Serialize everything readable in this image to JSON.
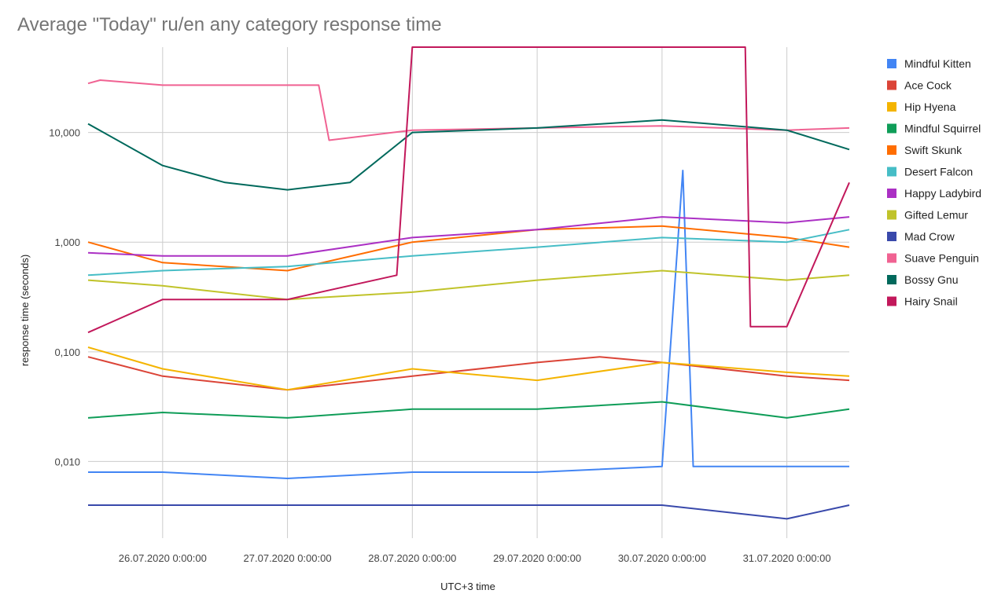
{
  "chart_data": {
    "type": "line",
    "title": "Average \"Today\" ru/en any category response time",
    "xlabel": "UTC+3 time",
    "ylabel": "response time (seconds)",
    "y_scale": "log",
    "ylim": [
      0.002,
      60
    ],
    "xlim": [
      "2020-07-25T09:40:00",
      "2020-07-31T12:00:00"
    ],
    "y_ticks": [
      {
        "value": 0.01,
        "label": "0,010"
      },
      {
        "value": 0.1,
        "label": "0,100"
      },
      {
        "value": 1,
        "label": "1,000"
      },
      {
        "value": 10,
        "label": "10,000"
      }
    ],
    "x_ticks": [
      {
        "value": "2020-07-26T00:00:00",
        "label": "26.07.2020 0:00:00"
      },
      {
        "value": "2020-07-27T00:00:00",
        "label": "27.07.2020 0:00:00"
      },
      {
        "value": "2020-07-28T00:00:00",
        "label": "28.07.2020 0:00:00"
      },
      {
        "value": "2020-07-29T00:00:00",
        "label": "29.07.2020 0:00:00"
      },
      {
        "value": "2020-07-30T00:00:00",
        "label": "30.07.2020 0:00:00"
      },
      {
        "value": "2020-07-31T00:00:00",
        "label": "31.07.2020 0:00:00"
      }
    ],
    "grid": true,
    "legend_position": "right",
    "series": [
      {
        "name": "Mindful Kitten",
        "color": "#4285f4",
        "x": [
          "2020-07-25T09:40",
          "2020-07-26T00:00",
          "2020-07-27T00:00",
          "2020-07-28T00:00",
          "2020-07-29T00:00",
          "2020-07-30T00:00",
          "2020-07-30T04:00",
          "2020-07-30T06:00",
          "2020-07-31T00:00",
          "2020-07-31T12:00"
        ],
        "y": [
          0.008,
          0.008,
          0.007,
          0.008,
          0.008,
          0.009,
          4.5,
          0.009,
          0.009,
          0.009
        ]
      },
      {
        "name": "Ace Cock",
        "color": "#db4437",
        "x": [
          "2020-07-25T09:40",
          "2020-07-26T00:00",
          "2020-07-27T00:00",
          "2020-07-28T00:00",
          "2020-07-29T00:00",
          "2020-07-29T12:00",
          "2020-07-30T00:00",
          "2020-07-31T00:00",
          "2020-07-31T12:00"
        ],
        "y": [
          0.09,
          0.06,
          0.045,
          0.06,
          0.08,
          0.09,
          0.08,
          0.06,
          0.055
        ]
      },
      {
        "name": "Hip Hyena",
        "color": "#f4b400",
        "x": [
          "2020-07-25T09:40",
          "2020-07-26T00:00",
          "2020-07-27T00:00",
          "2020-07-28T00:00",
          "2020-07-29T00:00",
          "2020-07-30T00:00",
          "2020-07-31T00:00",
          "2020-07-31T12:00"
        ],
        "y": [
          0.11,
          0.07,
          0.045,
          0.07,
          0.055,
          0.08,
          0.065,
          0.06
        ]
      },
      {
        "name": "Mindful Squirrel",
        "color": "#0f9d58",
        "x": [
          "2020-07-25T09:40",
          "2020-07-26T00:00",
          "2020-07-27T00:00",
          "2020-07-28T00:00",
          "2020-07-29T00:00",
          "2020-07-30T00:00",
          "2020-07-31T00:00",
          "2020-07-31T12:00"
        ],
        "y": [
          0.025,
          0.028,
          0.025,
          0.03,
          0.03,
          0.035,
          0.025,
          0.03
        ]
      },
      {
        "name": "Swift Skunk",
        "color": "#ff6d00",
        "x": [
          "2020-07-25T09:40",
          "2020-07-26T00:00",
          "2020-07-27T00:00",
          "2020-07-28T00:00",
          "2020-07-29T00:00",
          "2020-07-30T00:00",
          "2020-07-31T00:00",
          "2020-07-31T12:00"
        ],
        "y": [
          1.0,
          0.65,
          0.55,
          1.0,
          1.3,
          1.4,
          1.1,
          0.9
        ]
      },
      {
        "name": "Desert Falcon",
        "color": "#46bdc6",
        "x": [
          "2020-07-25T09:40",
          "2020-07-26T00:00",
          "2020-07-27T00:00",
          "2020-07-28T00:00",
          "2020-07-29T00:00",
          "2020-07-30T00:00",
          "2020-07-31T00:00",
          "2020-07-31T12:00"
        ],
        "y": [
          0.5,
          0.55,
          0.6,
          0.75,
          0.9,
          1.1,
          1.0,
          1.3
        ]
      },
      {
        "name": "Happy Ladybird",
        "color": "#ab30c4",
        "x": [
          "2020-07-25T09:40",
          "2020-07-26T00:00",
          "2020-07-27T00:00",
          "2020-07-28T00:00",
          "2020-07-29T00:00",
          "2020-07-30T00:00",
          "2020-07-31T00:00",
          "2020-07-31T12:00"
        ],
        "y": [
          0.8,
          0.75,
          0.75,
          1.1,
          1.3,
          1.7,
          1.5,
          1.7
        ]
      },
      {
        "name": "Gifted Lemur",
        "color": "#c0c32a",
        "x": [
          "2020-07-25T09:40",
          "2020-07-26T00:00",
          "2020-07-27T00:00",
          "2020-07-28T00:00",
          "2020-07-29T00:00",
          "2020-07-30T00:00",
          "2020-07-31T00:00",
          "2020-07-31T12:00"
        ],
        "y": [
          0.45,
          0.4,
          0.3,
          0.35,
          0.45,
          0.55,
          0.45,
          0.5
        ]
      },
      {
        "name": "Mad Crow",
        "color": "#3949ab",
        "x": [
          "2020-07-25T09:40",
          "2020-07-26T00:00",
          "2020-07-27T00:00",
          "2020-07-28T00:00",
          "2020-07-29T00:00",
          "2020-07-30T00:00",
          "2020-07-31T00:00",
          "2020-07-31T12:00"
        ],
        "y": [
          0.004,
          0.004,
          0.004,
          0.004,
          0.004,
          0.004,
          0.003,
          0.004
        ]
      },
      {
        "name": "Suave Penguin",
        "color": "#f06292",
        "x": [
          "2020-07-25T09:40",
          "2020-07-25T12:00",
          "2020-07-26T00:00",
          "2020-07-27T00:00",
          "2020-07-27T06:00",
          "2020-07-27T08:00",
          "2020-07-28T00:00",
          "2020-07-29T00:00",
          "2020-07-30T00:00",
          "2020-07-31T00:00",
          "2020-07-31T12:00"
        ],
        "y": [
          28,
          30,
          27,
          27,
          27,
          8.5,
          10.5,
          11,
          11.5,
          10.5,
          11
        ]
      },
      {
        "name": "Bossy Gnu",
        "color": "#00695c",
        "x": [
          "2020-07-25T09:40",
          "2020-07-26T00:00",
          "2020-07-26T12:00",
          "2020-07-27T00:00",
          "2020-07-27T12:00",
          "2020-07-28T00:00",
          "2020-07-29T00:00",
          "2020-07-30T00:00",
          "2020-07-31T00:00",
          "2020-07-31T12:00"
        ],
        "y": [
          12,
          5,
          3.5,
          3,
          3.5,
          10,
          11,
          13,
          10.5,
          7
        ]
      },
      {
        "name": "Hairy Snail",
        "color": "#c2185b",
        "x": [
          "2020-07-25T09:40",
          "2020-07-26T00:00",
          "2020-07-27T00:00",
          "2020-07-27T21:00",
          "2020-07-28T00:00",
          "2020-07-29T00:00",
          "2020-07-30T00:00",
          "2020-07-30T16:00",
          "2020-07-30T17:00",
          "2020-07-31T00:00",
          "2020-07-31T12:00"
        ],
        "y": [
          0.15,
          0.3,
          0.3,
          0.5,
          60,
          60,
          60,
          60,
          0.17,
          0.17,
          3.5
        ]
      }
    ]
  }
}
